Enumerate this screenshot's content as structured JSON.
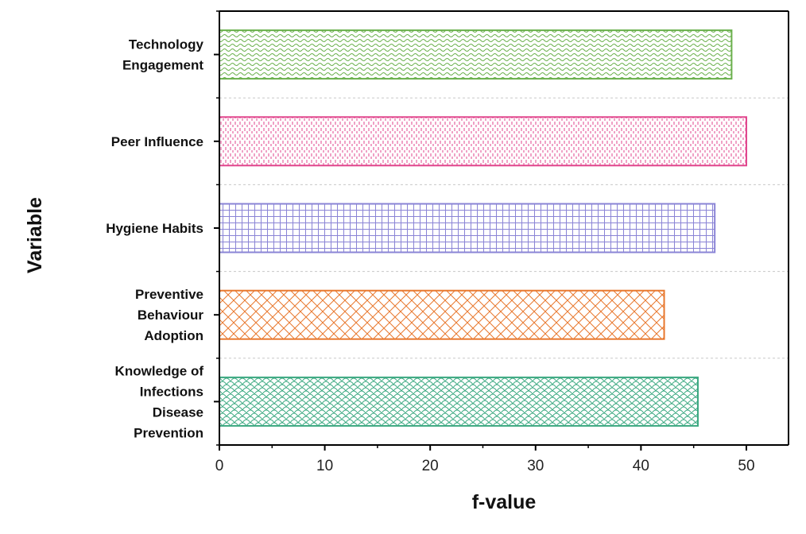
{
  "chart_data": {
    "type": "bar",
    "orientation": "horizontal",
    "xlabel": "f-value",
    "ylabel": "Variable",
    "xlim": [
      0,
      54
    ],
    "xticks": [
      0,
      10,
      20,
      30,
      40,
      50
    ],
    "grid": "horizontal dashed separators",
    "categories": [
      "Technology Engagement",
      "Peer Influence",
      "Hygiene Habits",
      "Preventive Behaviour Adoption",
      "Knowledge of Infections Disease Prevention"
    ],
    "category_lines": [
      [
        "Technology",
        "Engagement"
      ],
      [
        "Peer Influence"
      ],
      [
        "Hygiene Habits"
      ],
      [
        "Preventive",
        "Behaviour",
        "Adoption"
      ],
      [
        "Knowledge of",
        "Infections",
        "Disease",
        "Prevention"
      ]
    ],
    "values": [
      48.6,
      50.0,
      47.0,
      42.2,
      45.4
    ],
    "colors": [
      "#6ab04c",
      "#e0448c",
      "#8a84d6",
      "#e8782e",
      "#3aa880"
    ],
    "patterns": [
      "wave",
      "dash-vertical",
      "grid",
      "brick",
      "scale"
    ]
  }
}
